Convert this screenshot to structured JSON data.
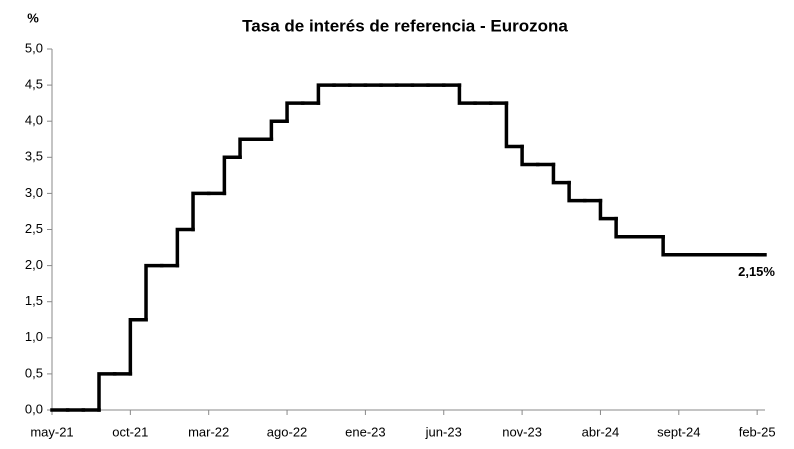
{
  "chart_data": {
    "type": "step",
    "title": "Tasa de interés de referencia - Eurozona",
    "y_label": "%",
    "annotation": "2,15%",
    "color": "#000000",
    "categories": [
      "may-21",
      null,
      null,
      null,
      null,
      "oct-21",
      null,
      null,
      null,
      null,
      "mar-22",
      null,
      null,
      null,
      null,
      "ago-22",
      null,
      null,
      null,
      null,
      "ene-23",
      null,
      null,
      null,
      null,
      "jun-23",
      null,
      null,
      null,
      null,
      "nov-23",
      null,
      null,
      null,
      null,
      "abr-24",
      null,
      null,
      null,
      null,
      "sept-24",
      null,
      null,
      null,
      null,
      "feb-25"
    ],
    "values": [
      0,
      0,
      0,
      0.5,
      0.5,
      1.25,
      2,
      2,
      2.5,
      3,
      3,
      3.5,
      3.75,
      3.75,
      4,
      4.25,
      4.25,
      4.5,
      4.5,
      4.5,
      4.5,
      4.5,
      4.5,
      4.5,
      4.5,
      4.5,
      4.25,
      4.25,
      4.25,
      3.65,
      3.4,
      3.4,
      3.15,
      2.9,
      2.9,
      2.65,
      2.4,
      2.4,
      2.4,
      2.15,
      2.15,
      2.15,
      2.15,
      2.15,
      2.15,
      2.15
    ],
    "ylim": [
      0,
      5
    ],
    "yticks": [
      {
        "value": 0,
        "label": "0,0"
      },
      {
        "value": 0.5,
        "label": "0,5"
      },
      {
        "value": 1,
        "label": "1,0"
      },
      {
        "value": 1.5,
        "label": "1,5"
      },
      {
        "value": 2,
        "label": "2,0"
      },
      {
        "value": 2.5,
        "label": "2,5"
      },
      {
        "value": 3,
        "label": "3,0"
      },
      {
        "value": 3.5,
        "label": "3,5"
      },
      {
        "value": 4,
        "label": "4,0"
      },
      {
        "value": 4.5,
        "label": "4,5"
      },
      {
        "value": 5,
        "label": "5,0"
      }
    ],
    "grid": false
  }
}
